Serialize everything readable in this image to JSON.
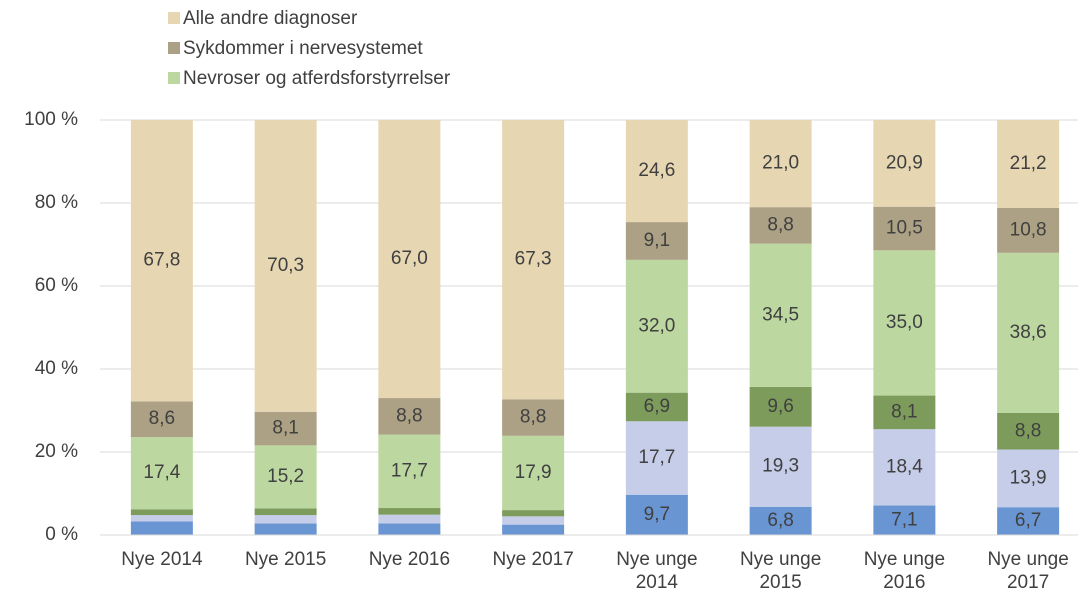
{
  "chart_data": {
    "type": "stacked_bar",
    "categories": [
      "Nye 2014",
      "Nye 2015",
      "Nye 2016",
      "Nye 2017",
      "Nye unge 2014",
      "Nye unge 2015",
      "Nye unge 2016",
      "Nye unge 2017"
    ],
    "series": [
      {
        "color": "#6a95d3",
        "values": [
          3.3,
          2.8,
          2.8,
          2.5,
          9.7,
          6.8,
          7.1,
          6.7
        ],
        "value_labels": [
          null,
          null,
          null,
          null,
          "9,7",
          "6,8",
          "7,1",
          "6,7"
        ]
      },
      {
        "color": "#c5cde9",
        "values": [
          1.5,
          2.0,
          2.1,
          2.0,
          17.7,
          19.3,
          18.4,
          13.9
        ],
        "value_labels": [
          null,
          null,
          null,
          null,
          "17,7",
          "19,3",
          "18,4",
          "13,9"
        ]
      },
      {
        "color": "#7d9c5c",
        "values": [
          1.4,
          1.6,
          1.6,
          1.5,
          6.9,
          9.6,
          8.1,
          8.8
        ],
        "value_labels": [
          null,
          null,
          null,
          null,
          "6,9",
          "9,6",
          "8,1",
          "8,8"
        ]
      },
      {
        "name": "Nevroser og atferdsforstyrrelser",
        "color": "#bdd7a1",
        "values": [
          17.4,
          15.2,
          17.7,
          17.9,
          32.0,
          34.5,
          35.0,
          38.6
        ],
        "value_labels": [
          "17,4",
          "15,2",
          "17,7",
          "17,9",
          "32,0",
          "34,5",
          "35,0",
          "38,6"
        ]
      },
      {
        "name": "Sykdommer i nervesystemet",
        "color": "#aca184",
        "values": [
          8.6,
          8.1,
          8.8,
          8.8,
          9.1,
          8.8,
          10.5,
          10.8
        ],
        "value_labels": [
          "8,6",
          "8,1",
          "8,8",
          "8,8",
          "9,1",
          "8,8",
          "10,5",
          "10,8"
        ]
      },
      {
        "name": "Alle andre diagnoser",
        "color": "#e6d7b2",
        "values": [
          67.8,
          70.3,
          67.0,
          67.3,
          24.6,
          21.0,
          20.9,
          21.2
        ],
        "value_labels": [
          "67,8",
          "70,3",
          "67,0",
          "67,3",
          "24,6",
          "21,0",
          "20,9",
          "21,2"
        ]
      }
    ],
    "ylim": [
      0,
      100
    ],
    "yticks": [
      {
        "value": 0,
        "label": "0 %"
      },
      {
        "value": 20,
        "label": "20 %"
      },
      {
        "value": 40,
        "label": "40 %"
      },
      {
        "value": 60,
        "label": "60 %"
      },
      {
        "value": 80,
        "label": "80 %"
      },
      {
        "value": 100,
        "label": "100 %"
      }
    ],
    "grid": true
  }
}
